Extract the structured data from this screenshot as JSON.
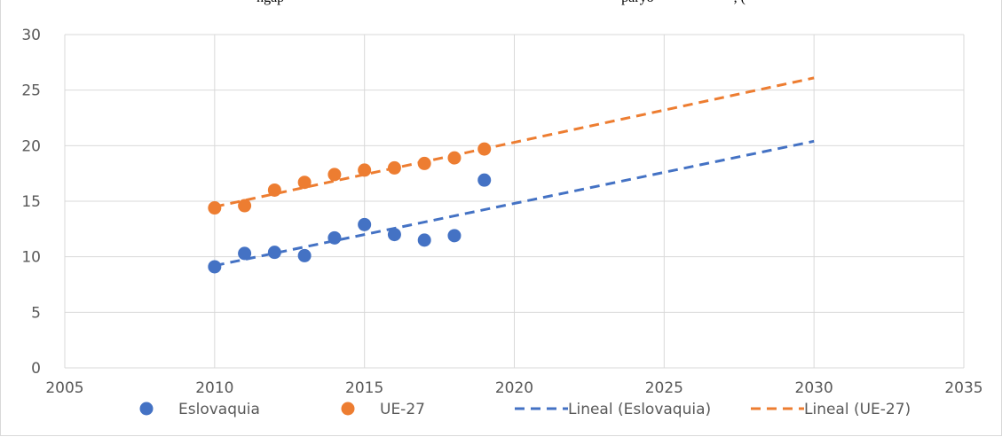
{
  "caption_fragment": "ngap",
  "caption_right": "paryo",
  "caption_tail": ", (",
  "chart_data": {
    "type": "scatter",
    "title": "",
    "xlabel": "",
    "ylabel": "",
    "xlim": [
      2005,
      2035
    ],
    "ylim": [
      0,
      30
    ],
    "xticks": [
      2005,
      2010,
      2015,
      2020,
      2025,
      2030,
      2035
    ],
    "yticks": [
      0,
      5,
      10,
      15,
      20,
      25,
      30
    ],
    "grid": true,
    "legend_position": "bottom",
    "series": [
      {
        "name": "Eslovaquia",
        "color": "#4472c4",
        "marker": "circle",
        "points": [
          [
            2010,
            9.1
          ],
          [
            2011,
            10.3
          ],
          [
            2012,
            10.4
          ],
          [
            2013,
            10.1
          ],
          [
            2014,
            11.7
          ],
          [
            2015,
            12.9
          ],
          [
            2016,
            12.0
          ],
          [
            2017,
            11.5
          ],
          [
            2018,
            11.9
          ],
          [
            2019,
            16.9
          ]
        ]
      },
      {
        "name": "UE-27",
        "color": "#ed7d31",
        "marker": "circle",
        "points": [
          [
            2010,
            14.4
          ],
          [
            2011,
            14.6
          ],
          [
            2012,
            16.0
          ],
          [
            2013,
            16.7
          ],
          [
            2014,
            17.4
          ],
          [
            2015,
            17.8
          ],
          [
            2016,
            18.0
          ],
          [
            2017,
            18.4
          ],
          [
            2018,
            18.9
          ],
          [
            2019,
            19.7
          ]
        ]
      }
    ],
    "trendlines": [
      {
        "name": "Lineal (Eslovaquia)",
        "color": "#4472c4",
        "style": "dashed",
        "from": [
          2010,
          9.2
        ],
        "to": [
          2030,
          20.4
        ]
      },
      {
        "name": "Lineal (UE-27)",
        "color": "#ed7d31",
        "style": "dashed",
        "from": [
          2010,
          14.5
        ],
        "to": [
          2030,
          26.1
        ]
      }
    ]
  }
}
